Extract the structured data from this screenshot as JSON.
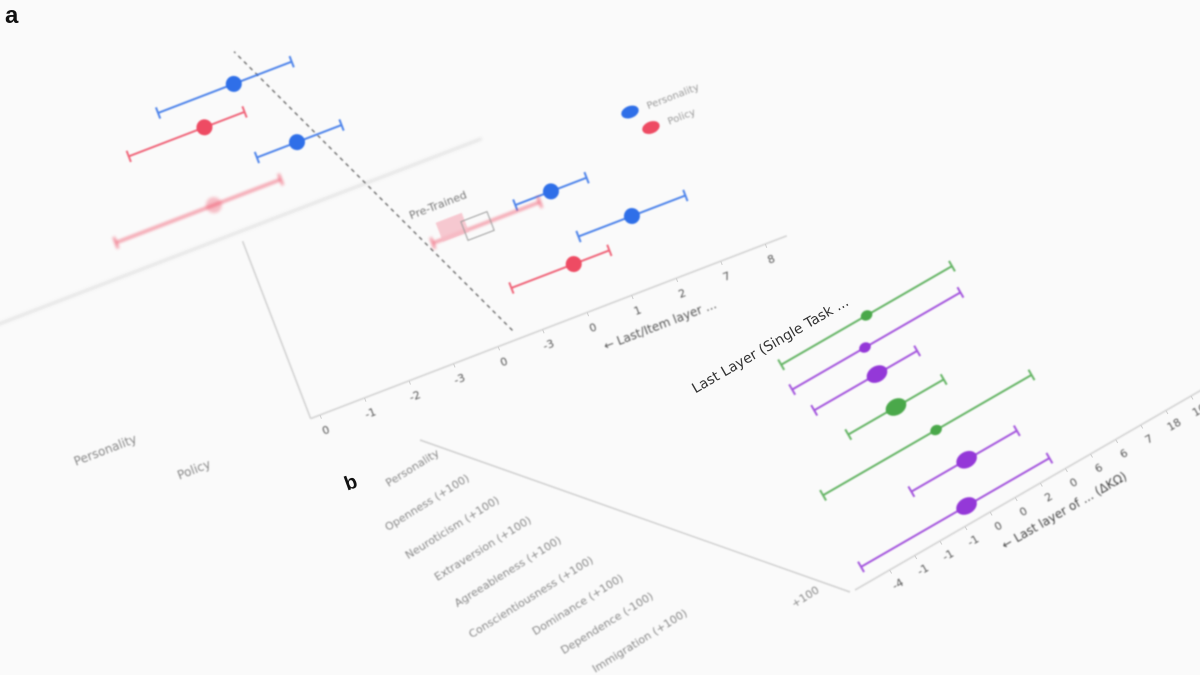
{
  "panels": {
    "a": "a",
    "b": "b"
  },
  "colors": {
    "personality": "#2f6fe8",
    "policy": "#ee4b63",
    "green": "#4aa84a",
    "purple": "#9438d8",
    "axis": "#cfcfcf",
    "text": "#777777"
  },
  "chart_data": [
    {
      "type": "scatter",
      "panel": "a",
      "annotation": "Pre-Trained",
      "xlabel": "← Last/Item layer ...",
      "ylabel_ticks": [
        "Personality",
        "Policy"
      ],
      "x_tick_labels": [
        "0",
        "-1",
        "-2",
        "-3",
        "0",
        "-3",
        "0",
        "1",
        "2",
        "7",
        "8"
      ],
      "legend": {
        "placement": "top-right",
        "entries": [
          {
            "name": "Personality",
            "color": "#2f6fe8"
          },
          {
            "name": "Policy",
            "color": "#ee4b63"
          }
        ]
      },
      "grid": false,
      "series": [
        {
          "name": "Personality",
          "color": "#2f6fe8",
          "points": [
            {
              "x": 0.8,
              "lo": -0.9,
              "hi": 2.1
            },
            {
              "x": 1.6,
              "lo": 0.7,
              "hi": 2.6
            },
            {
              "x": 6.2,
              "lo": 5.4,
              "hi": 7.0
            },
            {
              "x": 7.6,
              "lo": 6.4,
              "hi": 8.8
            }
          ]
        },
        {
          "name": "Policy",
          "color": "#ee4b63",
          "points": [
            {
              "x": -0.1,
              "lo": -1.8,
              "hi": 0.8
            },
            {
              "x": -0.5,
              "lo": -2.7,
              "hi": 1.0
            },
            {
              "x": 4.0,
              "lo": 3.5,
              "hi": 5.9
            },
            {
              "x": 6.1,
              "lo": 4.7,
              "hi": 6.9
            }
          ]
        }
      ]
    },
    {
      "type": "scatter",
      "panel": "b",
      "title": "Last Layer (Single Task ...",
      "xlabel": "← Last layer of ... (ΔKΩ)",
      "x_tick_labels": [
        "-4",
        "-1",
        "-1",
        "-1",
        "0",
        "0",
        "2",
        "0",
        "6",
        "6",
        "7",
        "18",
        "10"
      ],
      "categories": [
        "Personality",
        "Openness (+100)",
        "Neuroticism (+100)",
        "Extraversion (+100)",
        "Agreeableness (+100)",
        "Conscientiousness (+100)",
        "Dominance (+100)",
        "Dependence (-100)",
        "Immigration (+100)",
        "+100"
      ],
      "grid": false,
      "points": [
        {
          "color": "#4aa84a",
          "x": 3.7,
          "lo": 0.3,
          "hi": 7.1,
          "marker": "small"
        },
        {
          "color": "#9438d8",
          "x": 3.1,
          "lo": 0.2,
          "hi": 6.9,
          "marker": "small"
        },
        {
          "color": "#9438d8",
          "x": 3.0,
          "lo": 0.5,
          "hi": 4.6,
          "marker": "large"
        },
        {
          "color": "#4aa84a",
          "x": 3.0,
          "lo": 1.1,
          "hi": 4.9,
          "marker": "large"
        },
        {
          "color": "#4aa84a",
          "x": 3.8,
          "lo": -0.7,
          "hi": 7.6,
          "marker": "small"
        },
        {
          "color": "#9438d8",
          "x": 4.2,
          "lo": 2.0,
          "hi": 6.2,
          "marker": "large"
        },
        {
          "color": "#9438d8",
          "x": 3.4,
          "lo": -0.8,
          "hi": 6.7,
          "marker": "large"
        }
      ]
    }
  ]
}
